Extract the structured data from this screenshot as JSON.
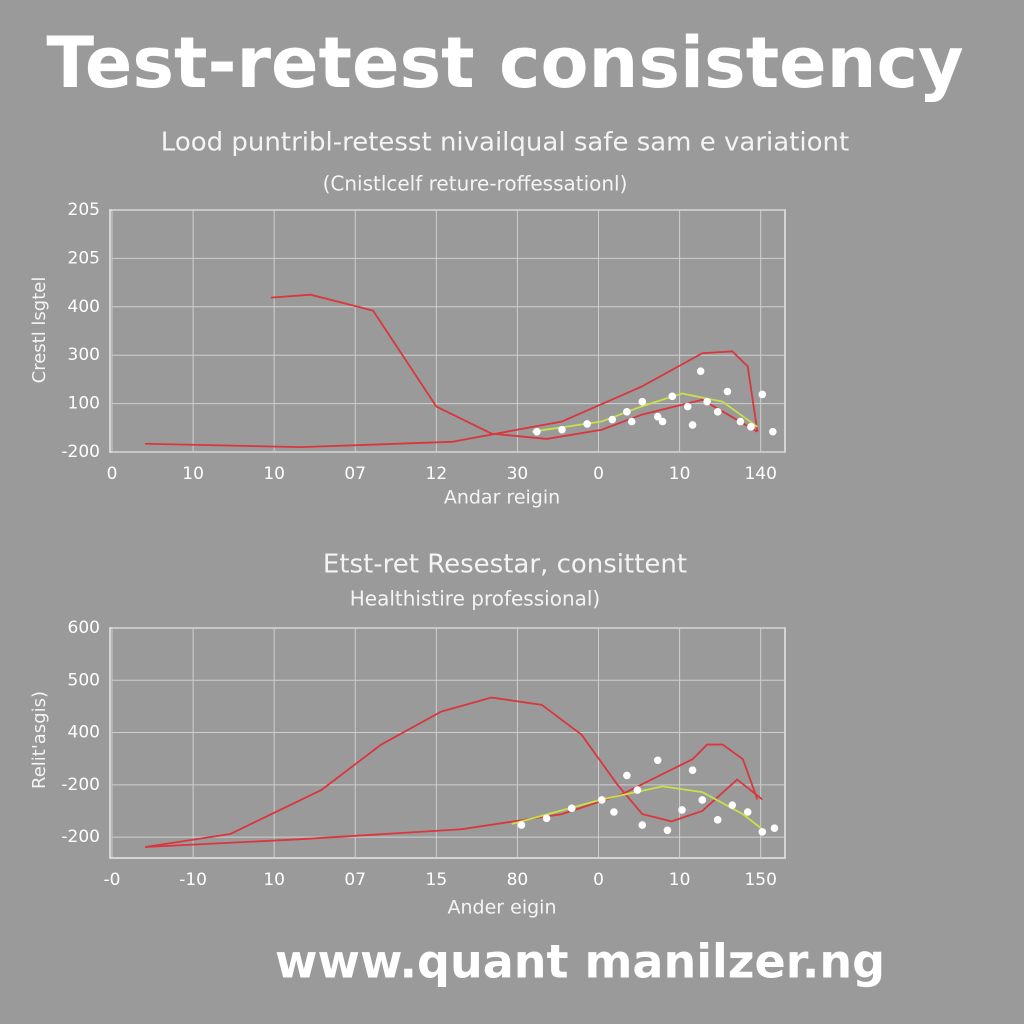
{
  "header": {
    "title": "Test-retest consistency"
  },
  "chart_data": [
    {
      "type": "line",
      "title": "Lood puntribl-retesst nivailqual safe sam e variationt",
      "subtitle": "(Cnistlcelf reture-roffessationl)",
      "y_label": "Crestl lsgtel",
      "x_label": "Andar reigin",
      "grid": true,
      "xlim": [
        0,
        8.3
      ],
      "ylim": [
        0,
        5
      ],
      "xticks": [
        {
          "value": 0,
          "label": "0"
        },
        {
          "value": 1,
          "label": "10"
        },
        {
          "value": 2,
          "label": "10"
        },
        {
          "value": 3,
          "label": "07"
        },
        {
          "value": 4,
          "label": "12"
        },
        {
          "value": 5,
          "label": "30"
        },
        {
          "value": 6,
          "label": "0"
        },
        {
          "value": 7,
          "label": "10"
        },
        {
          "value": 8,
          "label": "140"
        }
      ],
      "yticks": [
        {
          "value": 0,
          "label": "-200"
        },
        {
          "value": 1,
          "label": "100"
        },
        {
          "value": 2,
          "label": "300"
        },
        {
          "value": 3,
          "label": "400"
        },
        {
          "value": 4,
          "label": "205"
        },
        {
          "value": 5,
          "label": "205"
        }
      ],
      "series": [
        {
          "color": "#d9363e",
          "x": [
            1.96,
            2.45,
            3.22,
            4.0,
            4.68,
            5.36,
            6.04,
            6.53,
            7.28,
            7.96
          ],
          "values": [
            3.19,
            3.25,
            2.92,
            0.94,
            0.38,
            0.27,
            0.46,
            0.77,
            1.08,
            0.42
          ]
        },
        {
          "color": "#d9363e",
          "x": [
            0.41,
            2.33,
            4.19,
            5.55,
            6.53,
            7.28,
            7.65,
            7.84,
            7.96
          ],
          "values": [
            0.17,
            0.1,
            0.21,
            0.63,
            1.35,
            2.04,
            2.08,
            1.77,
            0.42
          ]
        },
        {
          "color": "#c8e04a",
          "x": [
            5.18,
            6.04,
            6.53,
            7.03,
            7.53,
            7.96
          ],
          "values": [
            0.42,
            0.63,
            0.94,
            1.21,
            1.04,
            0.52
          ]
        }
      ],
      "scatter": {
        "color": "#ffffff",
        "x": [
          5.24,
          5.55,
          5.86,
          6.17,
          6.35,
          6.54,
          6.73,
          6.91,
          7.1,
          7.26,
          7.34,
          7.47,
          7.59,
          7.75,
          7.88,
          8.02,
          8.15,
          6.41,
          6.79,
          7.16
        ],
        "values": [
          0.42,
          0.46,
          0.58,
          0.67,
          0.83,
          1.04,
          0.73,
          1.15,
          0.94,
          1.67,
          1.04,
          0.83,
          1.25,
          0.63,
          0.52,
          1.19,
          0.42,
          0.63,
          0.63,
          0.56
        ]
      }
    },
    {
      "type": "line",
      "title": "Etst-ret Resestar, consittent",
      "subtitle": "Healthistire professional)",
      "y_label": "Relit'asgis)",
      "x_label": "Ander eigin",
      "grid": true,
      "xlim": [
        0,
        8.3
      ],
      "ylim": [
        -0.4,
        4
      ],
      "xticks": [
        {
          "value": 0,
          "label": "-0"
        },
        {
          "value": 1,
          "label": "-10"
        },
        {
          "value": 2,
          "label": "10"
        },
        {
          "value": 3,
          "label": "07"
        },
        {
          "value": 4,
          "label": "15"
        },
        {
          "value": 5,
          "label": "80"
        },
        {
          "value": 6,
          "label": "0"
        },
        {
          "value": 7,
          "label": "10"
        },
        {
          "value": 8,
          "label": "150"
        }
      ],
      "yticks": [
        {
          "value": 0,
          "label": "-200"
        },
        {
          "value": 1,
          "label": "-200"
        },
        {
          "value": 2,
          "label": "400"
        },
        {
          "value": 3,
          "label": "500"
        },
        {
          "value": 4,
          "label": "600"
        }
      ],
      "series": [
        {
          "color": "#d9363e",
          "x": [
            0.41,
            1.46,
            2.58,
            3.32,
            4.06,
            4.68,
            5.3,
            5.79,
            6.23,
            6.54,
            6.9,
            7.28,
            7.71,
            8.02
          ],
          "values": [
            -0.19,
            0.06,
            0.9,
            1.77,
            2.4,
            2.67,
            2.53,
            1.96,
            1.01,
            0.44,
            0.3,
            0.5,
            1.1,
            0.72
          ]
        },
        {
          "color": "#d9363e",
          "x": [
            0.41,
            2.33,
            4.31,
            5.55,
            6.29,
            7.16,
            7.34,
            7.53,
            7.78,
            7.96
          ],
          "values": [
            -0.19,
            -0.04,
            0.15,
            0.44,
            0.82,
            1.49,
            1.77,
            1.77,
            1.49,
            0.72
          ]
        },
        {
          "color": "#c8e04a",
          "x": [
            4.93,
            6.04,
            6.79,
            7.28,
            7.78,
            8.02
          ],
          "values": [
            0.25,
            0.72,
            0.97,
            0.86,
            0.44,
            0.15
          ]
        }
      ],
      "scatter": {
        "color": "#ffffff",
        "x": [
          5.05,
          5.36,
          5.67,
          6.04,
          6.35,
          6.48,
          6.73,
          6.85,
          7.16,
          7.28,
          7.47,
          7.65,
          7.84,
          8.02,
          8.17,
          6.54,
          7.03,
          6.19
        ],
        "values": [
          0.23,
          0.36,
          0.55,
          0.71,
          1.18,
          0.9,
          1.47,
          0.13,
          1.28,
          0.71,
          0.33,
          0.61,
          0.48,
          0.1,
          0.17,
          0.23,
          0.52,
          0.48
        ]
      }
    }
  ],
  "footer": "www.quant manilzer.ng"
}
